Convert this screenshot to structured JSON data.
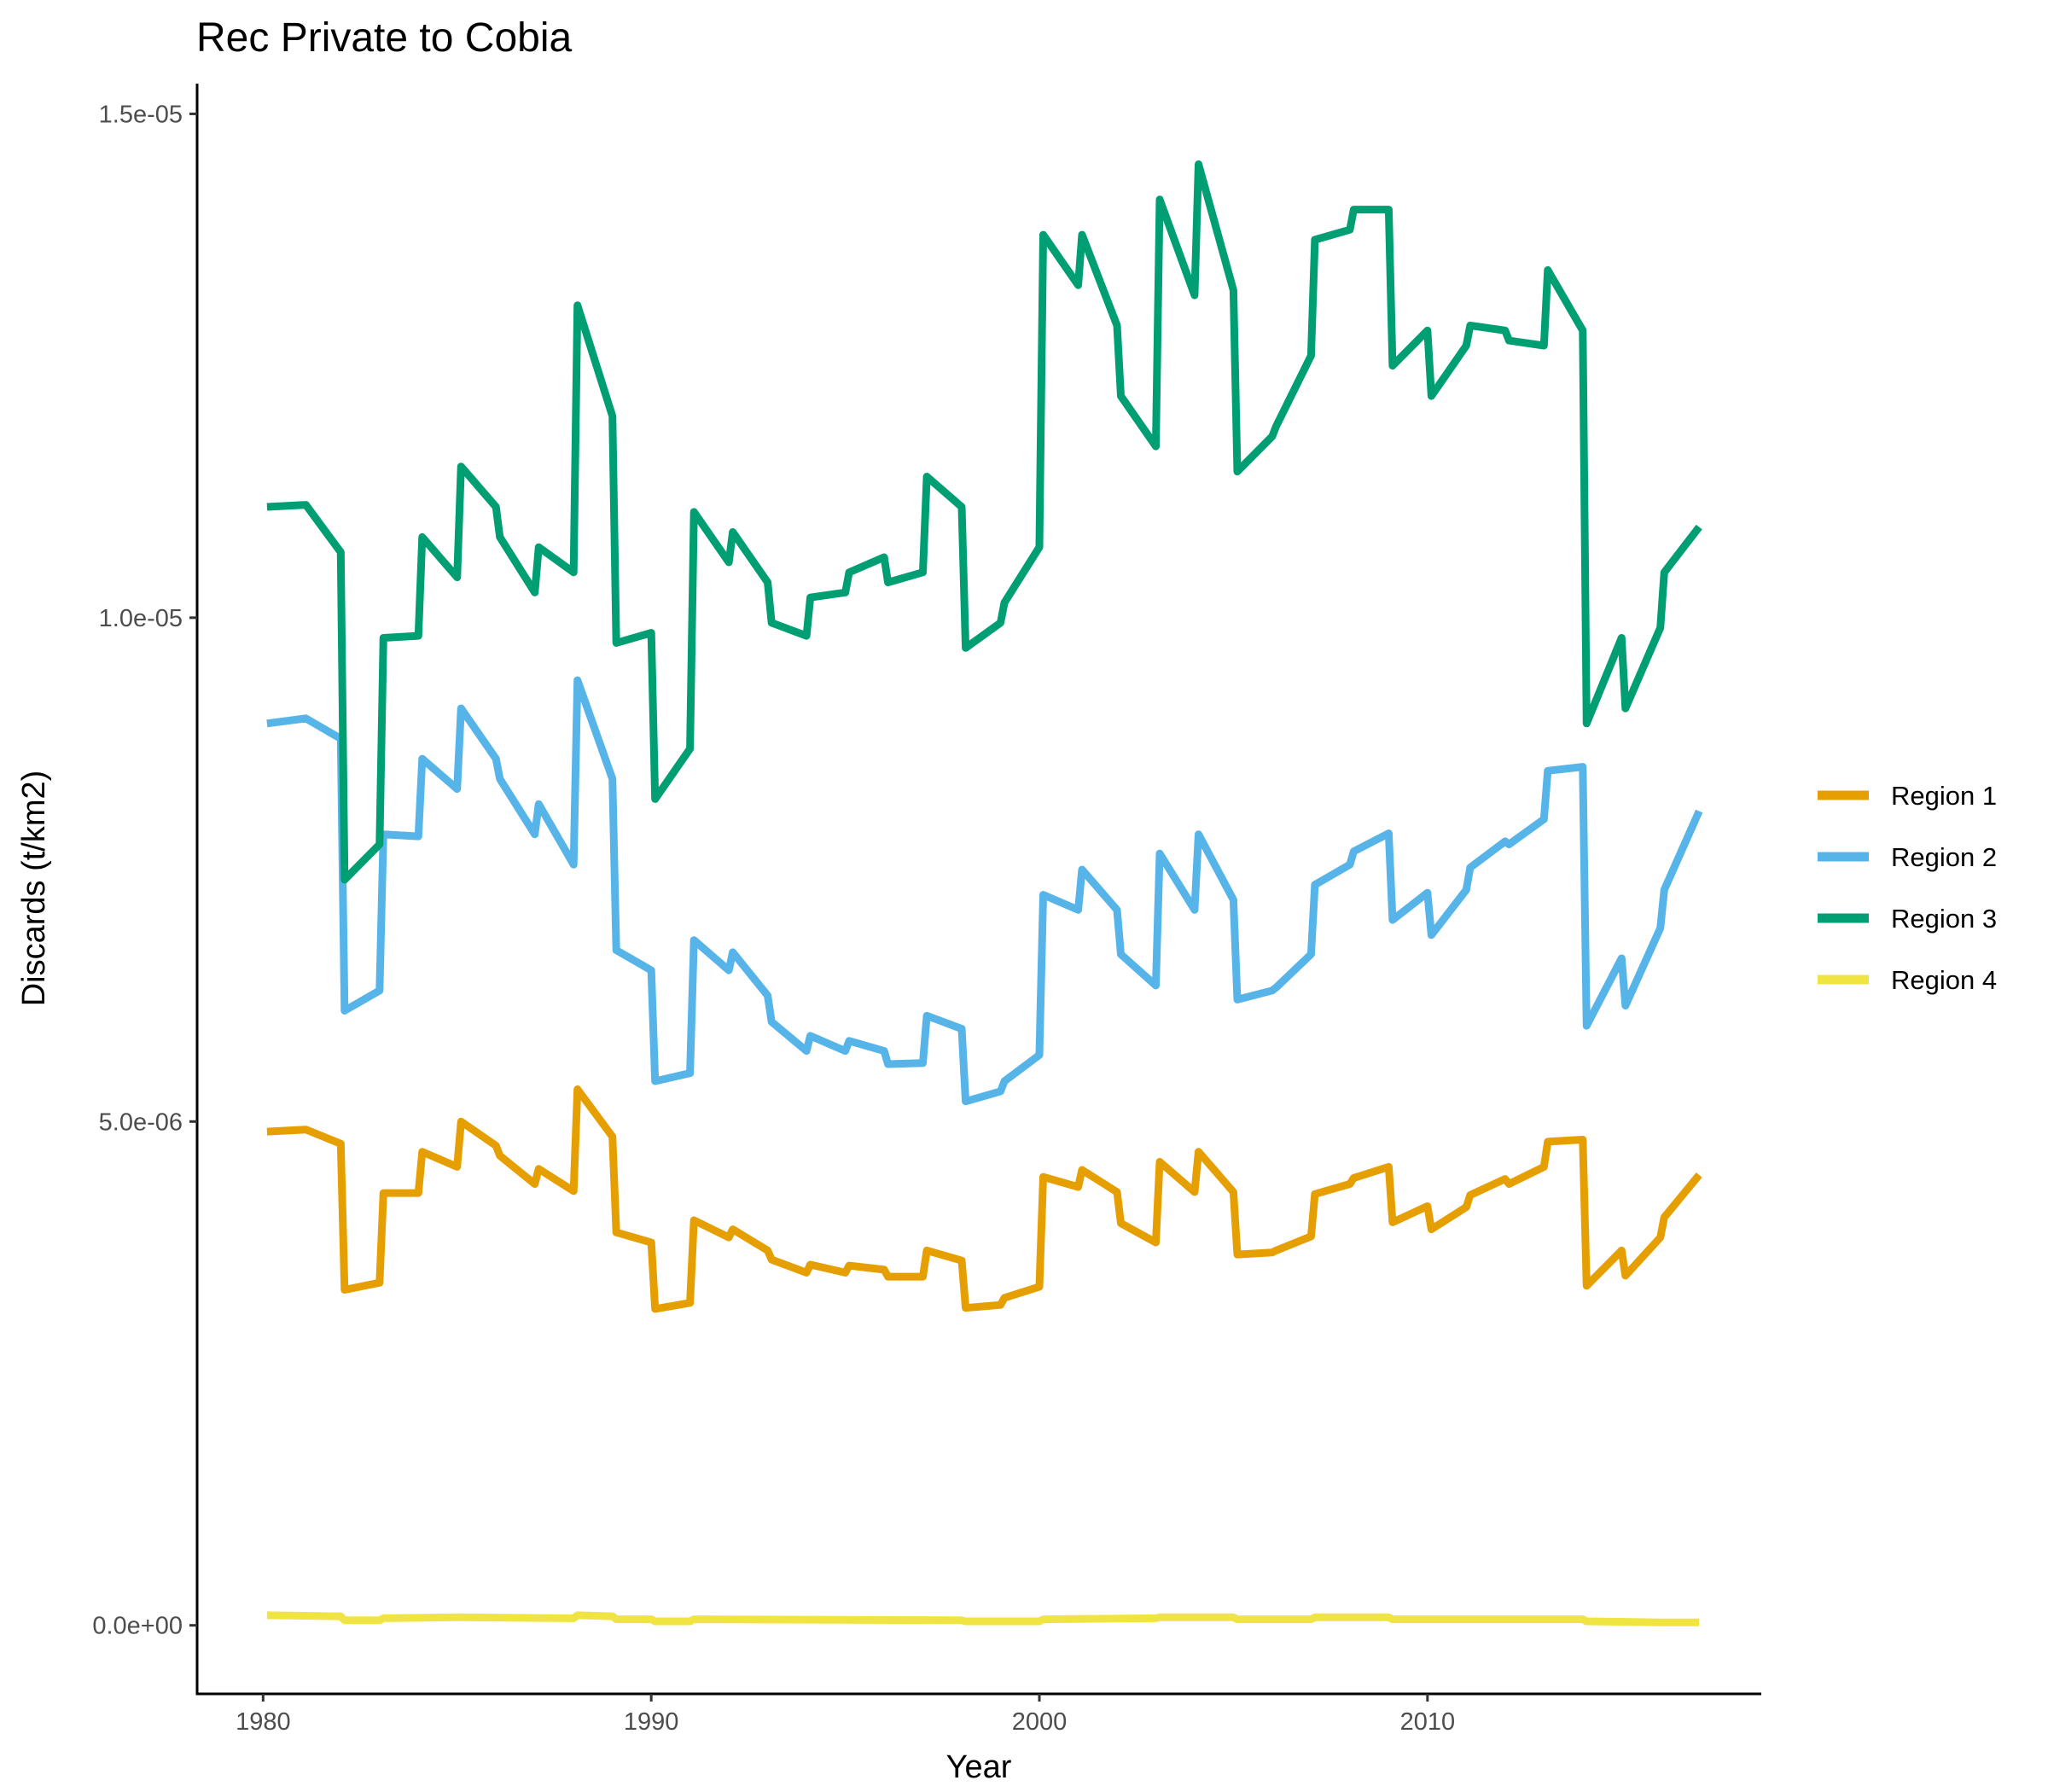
{
  "chart_data": {
    "type": "line",
    "title": "Rec Private to Cobia",
    "xlabel": "Year",
    "ylabel": "Discards (t/km2)",
    "xlim": [
      1978.3,
      2018.6
    ],
    "ylim": [
      -6.8e-07,
      1.53e-05
    ],
    "x_ticks": [
      1980,
      1990,
      2000,
      2010
    ],
    "x_tick_labels": [
      "1980",
      "1990",
      "2000",
      "2010"
    ],
    "y_ticks": [
      0,
      5e-06,
      1e-05,
      1.5e-05
    ],
    "y_tick_labels": [
      "0.0e+00",
      "5.0e-06",
      "1.0e-05",
      "1.5e-05"
    ],
    "grid": false,
    "legend_position": "right",
    "series": [
      {
        "name": "Region 1",
        "color": "#E69F00",
        "x": [
          1980.1,
          1981.1,
          1982.0,
          1982.1,
          1983.0,
          1983.1,
          1984.0,
          1984.1,
          1985.0,
          1985.1,
          1986.0,
          1986.1,
          1987.0,
          1987.1,
          1988.0,
          1988.1,
          1989.0,
          1989.1,
          1990.0,
          1990.1,
          1991.0,
          1991.1,
          1992.0,
          1992.1,
          1993.0,
          1993.1,
          1994.0,
          1994.1,
          1995.0,
          1995.1,
          1996.0,
          1996.1,
          1997.0,
          1997.1,
          1998.0,
          1998.1,
          1999.0,
          1999.1,
          2000.0,
          2000.1,
          2001.0,
          2001.1,
          2002.0,
          2002.1,
          2003.0,
          2003.1,
          2004.0,
          2004.1,
          2005.0,
          2005.1,
          2006.0,
          2006.1,
          2007.0,
          2007.1,
          2008.0,
          2008.1,
          2009.0,
          2009.1,
          2010.0,
          2010.1,
          2011.0,
          2011.1,
          2012.0,
          2012.1,
          2013.0,
          2013.1,
          2014.0,
          2014.1,
          2015.0,
          2015.1,
          2016.0,
          2016.1,
          2017.0
        ],
        "values": [
          4.9e-06,
          4.92e-06,
          4.78e-06,
          3.33e-06,
          3.4e-06,
          4.29e-06,
          4.29e-06,
          4.7e-06,
          4.55e-06,
          5e-06,
          4.76e-06,
          4.66e-06,
          4.38e-06,
          4.53e-06,
          4.31e-06,
          5.32e-06,
          4.85e-06,
          3.9e-06,
          3.8e-06,
          3.14e-06,
          3.2e-06,
          4.02e-06,
          3.85e-06,
          3.93e-06,
          3.72e-06,
          3.63e-06,
          3.5e-06,
          3.58e-06,
          3.5e-06,
          3.57e-06,
          3.53e-06,
          3.46e-06,
          3.46e-06,
          3.72e-06,
          3.62e-06,
          3.15e-06,
          3.18e-06,
          3.25e-06,
          3.36e-06,
          4.45e-06,
          4.35e-06,
          4.52e-06,
          4.3e-06,
          3.99e-06,
          3.8e-06,
          4.6e-06,
          4.3e-06,
          4.7e-06,
          4.3e-06,
          3.68e-06,
          3.7e-06,
          3.72e-06,
          3.86e-06,
          4.28e-06,
          4.38e-06,
          4.44e-06,
          4.55e-06,
          4e-06,
          4.16e-06,
          3.93e-06,
          4.15e-06,
          4.27e-06,
          4.43e-06,
          4.38e-06,
          4.55e-06,
          4.8e-06,
          4.82e-06,
          3.37e-06,
          3.72e-06,
          3.47e-06,
          3.85e-06,
          4.05e-06,
          4.47e-06
        ]
      },
      {
        "name": "Region 2",
        "color": "#56B4E9",
        "x": [
          1980.1,
          1981.1,
          1982.0,
          1982.1,
          1983.0,
          1983.1,
          1984.0,
          1984.1,
          1985.0,
          1985.1,
          1986.0,
          1986.1,
          1987.0,
          1987.1,
          1988.0,
          1988.1,
          1989.0,
          1989.1,
          1990.0,
          1990.1,
          1991.0,
          1991.1,
          1992.0,
          1992.1,
          1993.0,
          1993.1,
          1994.0,
          1994.1,
          1995.0,
          1995.1,
          1996.0,
          1996.1,
          1997.0,
          1997.1,
          1998.0,
          1998.1,
          1999.0,
          1999.1,
          2000.0,
          2000.1,
          2001.0,
          2001.1,
          2002.0,
          2002.1,
          2003.0,
          2003.1,
          2004.0,
          2004.1,
          2005.0,
          2005.1,
          2006.0,
          2006.1,
          2007.0,
          2007.1,
          2008.0,
          2008.1,
          2009.0,
          2009.1,
          2010.0,
          2010.1,
          2011.0,
          2011.1,
          2012.0,
          2012.1,
          2013.0,
          2013.1,
          2014.0,
          2014.1,
          2015.0,
          2015.1,
          2016.0,
          2016.1,
          2017.0
        ],
        "values": [
          8.95e-06,
          9e-06,
          8.8e-06,
          6.1e-06,
          6.3e-06,
          7.85e-06,
          7.83e-06,
          8.6e-06,
          8.3e-06,
          9.1e-06,
          8.6e-06,
          8.4e-06,
          7.85e-06,
          8.15e-06,
          7.55e-06,
          9.38e-06,
          8.4e-06,
          6.7e-06,
          6.5e-06,
          5.4e-06,
          5.48e-06,
          6.8e-06,
          6.5e-06,
          6.68e-06,
          6.25e-06,
          5.99e-06,
          5.7e-06,
          5.85e-06,
          5.7e-06,
          5.8e-06,
          5.7e-06,
          5.57e-06,
          5.58e-06,
          6.05e-06,
          5.92e-06,
          5.2e-06,
          5.3e-06,
          5.4e-06,
          5.66e-06,
          7.25e-06,
          7.1e-06,
          7.5e-06,
          7.1e-06,
          6.66e-06,
          6.35e-06,
          7.66e-06,
          7.1e-06,
          7.85e-06,
          7.2e-06,
          6.21e-06,
          6.3e-06,
          6.33e-06,
          6.66e-06,
          7.35e-06,
          7.55e-06,
          7.68e-06,
          7.86e-06,
          7e-06,
          7.27e-06,
          6.85e-06,
          7.3e-06,
          7.52e-06,
          7.78e-06,
          7.75e-06,
          8e-06,
          8.48e-06,
          8.52e-06,
          5.95e-06,
          6.62e-06,
          6.15e-06,
          6.92e-06,
          7.3e-06,
          8.08e-06
        ]
      },
      {
        "name": "Region 3",
        "color": "#009E73",
        "x": [
          1980.1,
          1981.1,
          1982.0,
          1982.1,
          1983.0,
          1983.1,
          1984.0,
          1984.1,
          1985.0,
          1985.1,
          1986.0,
          1986.1,
          1987.0,
          1987.1,
          1988.0,
          1988.1,
          1989.0,
          1989.1,
          1990.0,
          1990.1,
          1991.0,
          1991.1,
          1992.0,
          1992.1,
          1993.0,
          1993.1,
          1994.0,
          1994.1,
          1995.0,
          1995.1,
          1996.0,
          1996.1,
          1997.0,
          1997.1,
          1998.0,
          1998.1,
          1999.0,
          1999.1,
          2000.0,
          2000.1,
          2001.0,
          2001.1,
          2002.0,
          2002.1,
          2003.0,
          2003.1,
          2004.0,
          2004.1,
          2005.0,
          2005.1,
          2006.0,
          2006.1,
          2007.0,
          2007.1,
          2008.0,
          2008.1,
          2009.0,
          2009.1,
          2010.0,
          2010.1,
          2011.0,
          2011.1,
          2012.0,
          2012.1,
          2013.0,
          2013.1,
          2014.0,
          2014.1,
          2015.0,
          2015.1,
          2016.0,
          2016.1,
          2017.0
        ],
        "values": [
          1.11e-05,
          1.112e-05,
          1.065e-05,
          7.4e-06,
          7.75e-06,
          9.8e-06,
          9.82e-06,
          1.08e-05,
          1.04e-05,
          1.15e-05,
          1.11e-05,
          1.08e-05,
          1.025e-05,
          1.07e-05,
          1.045e-05,
          1.31e-05,
          1.2e-05,
          9.75e-06,
          9.85e-06,
          8.2e-06,
          8.7e-06,
          1.105e-05,
          1.055e-05,
          1.085e-05,
          1.035e-05,
          9.95e-06,
          9.82e-06,
          1.02e-05,
          1.025e-05,
          1.045e-05,
          1.06e-05,
          1.035e-05,
          1.045e-05,
          1.14e-05,
          1.11e-05,
          9.7e-06,
          9.95e-06,
          1.015e-05,
          1.07e-05,
          1.38e-05,
          1.33e-05,
          1.38e-05,
          1.29e-05,
          1.22e-05,
          1.17e-05,
          1.415e-05,
          1.32e-05,
          1.45e-05,
          1.325e-05,
          1.145e-05,
          1.18e-05,
          1.19e-05,
          1.26e-05,
          1.375e-05,
          1.385e-05,
          1.405e-05,
          1.405e-05,
          1.25e-05,
          1.285e-05,
          1.22e-05,
          1.27e-05,
          1.29e-05,
          1.285e-05,
          1.275e-05,
          1.27e-05,
          1.345e-05,
          1.285e-05,
          8.95e-06,
          9.8e-06,
          9.1e-06,
          9.9e-06,
          1.045e-05,
          1.09e-05
        ]
      },
      {
        "name": "Region 4",
        "color": "#F0E442",
        "x": [
          1980.1,
          1982.0,
          1982.1,
          1983.0,
          1983.1,
          1985.0,
          1988.0,
          1988.1,
          1989.0,
          1989.1,
          1990.0,
          1990.1,
          1991.0,
          1991.1,
          1998.0,
          1998.1,
          2000.0,
          2000.1,
          2003.0,
          2003.1,
          2005.0,
          2005.1,
          2007.0,
          2007.1,
          2009.0,
          2009.1,
          2014.0,
          2014.1,
          2016.0,
          2016.1,
          2017.0
        ],
        "values": [
          1e-07,
          9e-08,
          5e-08,
          5e-08,
          7e-08,
          8e-08,
          7e-08,
          1e-07,
          9e-08,
          6e-08,
          6e-08,
          4e-08,
          4e-08,
          6e-08,
          5e-08,
          4e-08,
          4e-08,
          6e-08,
          7e-08,
          8e-08,
          8e-08,
          6e-08,
          6e-08,
          8e-08,
          8e-08,
          6e-08,
          6e-08,
          4e-08,
          3e-08,
          3e-08,
          3e-08
        ]
      }
    ]
  }
}
